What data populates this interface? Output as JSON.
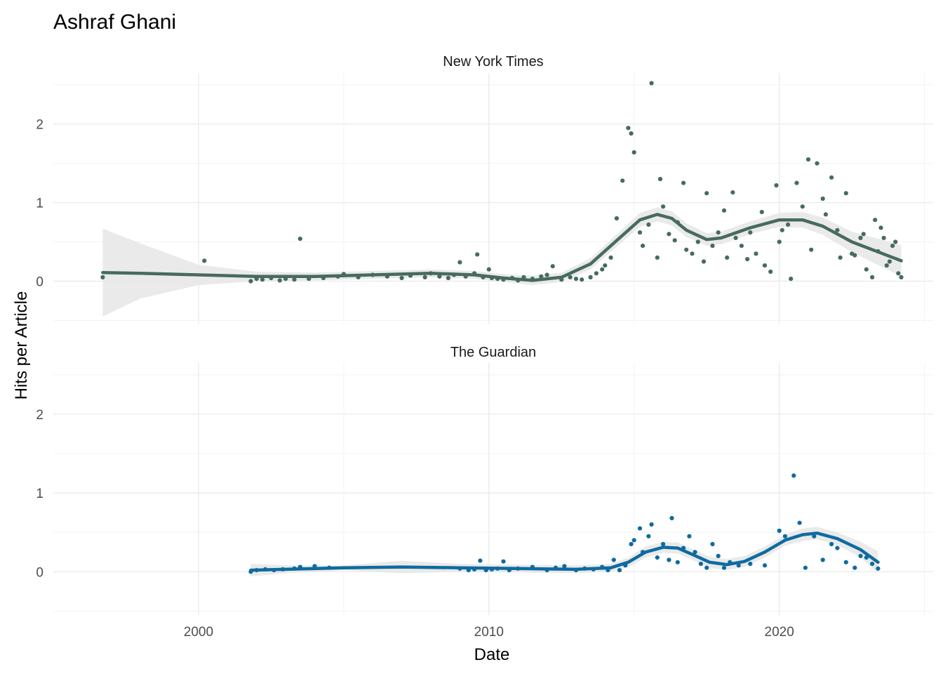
{
  "chart_data": {
    "type": "scatter",
    "title": "Ashraf Ghani",
    "xlabel": "Date",
    "ylabel": "Hits per Article",
    "xlim": [
      1995.0,
      2025.3
    ],
    "ylim": [
      -0.55,
      2.65
    ],
    "x_ticks": [
      2000,
      2010,
      2020
    ],
    "x_tick_labels": [
      "2000",
      "2010",
      "2020"
    ],
    "y_ticks": [
      0,
      1,
      2
    ],
    "y_tick_labels": [
      "0",
      "1",
      "2"
    ],
    "grid": true,
    "panels": [
      {
        "name": "New York Times",
        "color": "#476b5e",
        "points": [
          [
            1996.7,
            0.05
          ],
          [
            2000.2,
            0.26
          ],
          [
            2001.8,
            0.0
          ],
          [
            2002.0,
            0.03
          ],
          [
            2002.2,
            0.02
          ],
          [
            2002.5,
            0.04
          ],
          [
            2002.8,
            0.01
          ],
          [
            2003.0,
            0.03
          ],
          [
            2003.3,
            0.02
          ],
          [
            2003.5,
            0.54
          ],
          [
            2003.8,
            0.03
          ],
          [
            2004.3,
            0.04
          ],
          [
            2004.8,
            0.06
          ],
          [
            2005.0,
            0.09
          ],
          [
            2005.5,
            0.05
          ],
          [
            2006.0,
            0.08
          ],
          [
            2006.5,
            0.06
          ],
          [
            2007.0,
            0.04
          ],
          [
            2007.3,
            0.07
          ],
          [
            2007.8,
            0.05
          ],
          [
            2008.0,
            0.1
          ],
          [
            2008.3,
            0.06
          ],
          [
            2008.6,
            0.04
          ],
          [
            2008.8,
            0.08
          ],
          [
            2009.0,
            0.24
          ],
          [
            2009.2,
            0.06
          ],
          [
            2009.5,
            0.1
          ],
          [
            2009.6,
            0.34
          ],
          [
            2009.8,
            0.05
          ],
          [
            2010.0,
            0.15
          ],
          [
            2010.1,
            0.04
          ],
          [
            2010.3,
            0.03
          ],
          [
            2010.5,
            0.02
          ],
          [
            2010.8,
            0.04
          ],
          [
            2011.0,
            0.01
          ],
          [
            2011.2,
            0.05
          ],
          [
            2011.5,
            0.03
          ],
          [
            2011.8,
            0.06
          ],
          [
            2012.0,
            0.08
          ],
          [
            2012.2,
            0.19
          ],
          [
            2012.5,
            0.02
          ],
          [
            2012.8,
            0.05
          ],
          [
            2013.0,
            0.03
          ],
          [
            2013.2,
            0.02
          ],
          [
            2013.5,
            0.05
          ],
          [
            2013.7,
            0.1
          ],
          [
            2013.9,
            0.15
          ],
          [
            2014.0,
            0.2
          ],
          [
            2014.2,
            0.3
          ],
          [
            2014.4,
            0.8
          ],
          [
            2014.6,
            1.28
          ],
          [
            2014.8,
            1.95
          ],
          [
            2014.9,
            1.88
          ],
          [
            2015.0,
            1.64
          ],
          [
            2015.2,
            0.62
          ],
          [
            2015.3,
            0.45
          ],
          [
            2015.5,
            0.72
          ],
          [
            2015.6,
            2.52
          ],
          [
            2015.8,
            0.3
          ],
          [
            2015.9,
            1.3
          ],
          [
            2016.0,
            0.95
          ],
          [
            2016.2,
            0.6
          ],
          [
            2016.4,
            0.52
          ],
          [
            2016.5,
            0.75
          ],
          [
            2016.7,
            1.25
          ],
          [
            2016.8,
            0.4
          ],
          [
            2017.0,
            0.35
          ],
          [
            2017.2,
            0.5
          ],
          [
            2017.4,
            0.25
          ],
          [
            2017.5,
            1.12
          ],
          [
            2017.7,
            0.45
          ],
          [
            2017.9,
            0.62
          ],
          [
            2018.1,
            0.9
          ],
          [
            2018.2,
            0.3
          ],
          [
            2018.4,
            1.13
          ],
          [
            2018.5,
            0.55
          ],
          [
            2018.7,
            0.45
          ],
          [
            2018.9,
            0.28
          ],
          [
            2019.0,
            0.62
          ],
          [
            2019.2,
            0.35
          ],
          [
            2019.4,
            0.88
          ],
          [
            2019.5,
            0.2
          ],
          [
            2019.7,
            0.12
          ],
          [
            2019.9,
            1.22
          ],
          [
            2020.0,
            0.5
          ],
          [
            2020.1,
            0.65
          ],
          [
            2020.3,
            0.72
          ],
          [
            2020.4,
            0.03
          ],
          [
            2020.6,
            1.25
          ],
          [
            2020.8,
            0.95
          ],
          [
            2021.0,
            1.55
          ],
          [
            2021.1,
            0.4
          ],
          [
            2021.3,
            1.5
          ],
          [
            2021.5,
            1.05
          ],
          [
            2021.6,
            0.85
          ],
          [
            2021.8,
            1.32
          ],
          [
            2022.0,
            0.65
          ],
          [
            2022.1,
            0.3
          ],
          [
            2022.3,
            1.12
          ],
          [
            2022.5,
            0.35
          ],
          [
            2022.6,
            0.33
          ],
          [
            2022.8,
            0.55
          ],
          [
            2022.9,
            0.6
          ],
          [
            2023.0,
            0.15
          ],
          [
            2023.2,
            0.05
          ],
          [
            2023.3,
            0.78
          ],
          [
            2023.4,
            0.38
          ],
          [
            2023.5,
            0.68
          ],
          [
            2023.6,
            0.55
          ],
          [
            2023.7,
            0.2
          ],
          [
            2023.8,
            0.25
          ],
          [
            2023.9,
            0.45
          ],
          [
            2024.0,
            0.5
          ],
          [
            2024.1,
            0.1
          ],
          [
            2024.2,
            0.05
          ]
        ],
        "smooth": [
          [
            1996.7,
            0.11
          ],
          [
            1998.0,
            0.1
          ],
          [
            2000.0,
            0.08
          ],
          [
            2002.0,
            0.06
          ],
          [
            2004.0,
            0.06
          ],
          [
            2006.0,
            0.08
          ],
          [
            2008.0,
            0.1
          ],
          [
            2009.5,
            0.08
          ],
          [
            2010.5,
            0.04
          ],
          [
            2011.5,
            0.01
          ],
          [
            2012.5,
            0.05
          ],
          [
            2013.5,
            0.22
          ],
          [
            2014.5,
            0.55
          ],
          [
            2015.2,
            0.78
          ],
          [
            2015.8,
            0.85
          ],
          [
            2016.3,
            0.8
          ],
          [
            2016.8,
            0.65
          ],
          [
            2017.5,
            0.53
          ],
          [
            2018.0,
            0.55
          ],
          [
            2019.0,
            0.68
          ],
          [
            2020.0,
            0.78
          ],
          [
            2020.8,
            0.78
          ],
          [
            2021.5,
            0.7
          ],
          [
            2022.5,
            0.5
          ],
          [
            2024.2,
            0.26
          ]
        ],
        "band": [
          [
            1996.7,
            -0.45,
            0.67
          ],
          [
            1998.0,
            -0.22,
            0.48
          ],
          [
            2000.0,
            -0.05,
            0.21
          ],
          [
            2002.0,
            0.0,
            0.12
          ],
          [
            2004.0,
            0.01,
            0.11
          ],
          [
            2006.0,
            0.03,
            0.13
          ],
          [
            2008.0,
            0.05,
            0.15
          ],
          [
            2009.5,
            0.03,
            0.13
          ],
          [
            2010.5,
            -0.01,
            0.09
          ],
          [
            2011.5,
            -0.05,
            0.07
          ],
          [
            2012.5,
            -0.01,
            0.11
          ],
          [
            2013.5,
            0.15,
            0.29
          ],
          [
            2014.5,
            0.47,
            0.63
          ],
          [
            2015.2,
            0.69,
            0.87
          ],
          [
            2015.8,
            0.76,
            0.94
          ],
          [
            2016.3,
            0.71,
            0.89
          ],
          [
            2016.8,
            0.56,
            0.74
          ],
          [
            2017.5,
            0.45,
            0.61
          ],
          [
            2018.0,
            0.47,
            0.63
          ],
          [
            2019.0,
            0.6,
            0.76
          ],
          [
            2020.0,
            0.69,
            0.87
          ],
          [
            2020.8,
            0.68,
            0.88
          ],
          [
            2021.5,
            0.59,
            0.81
          ],
          [
            2022.5,
            0.37,
            0.63
          ],
          [
            2024.2,
            0.06,
            0.46
          ]
        ]
      },
      {
        "name": "The Guardian",
        "color": "#0e6ba0",
        "points": [
          [
            2001.8,
            0.0
          ],
          [
            2002.0,
            0.02
          ],
          [
            2002.3,
            0.03
          ],
          [
            2002.6,
            0.02
          ],
          [
            2002.9,
            0.03
          ],
          [
            2003.3,
            0.04
          ],
          [
            2003.5,
            0.06
          ],
          [
            2004.0,
            0.07
          ],
          [
            2004.5,
            0.05
          ],
          [
            2009.0,
            0.04
          ],
          [
            2009.3,
            0.02
          ],
          [
            2009.5,
            0.03
          ],
          [
            2009.7,
            0.14
          ],
          [
            2009.9,
            0.02
          ],
          [
            2010.1,
            0.03
          ],
          [
            2010.3,
            0.04
          ],
          [
            2010.5,
            0.13
          ],
          [
            2010.7,
            0.02
          ],
          [
            2011.0,
            0.04
          ],
          [
            2011.5,
            0.06
          ],
          [
            2012.0,
            0.02
          ],
          [
            2012.3,
            0.05
          ],
          [
            2012.6,
            0.07
          ],
          [
            2013.0,
            0.02
          ],
          [
            2013.3,
            0.04
          ],
          [
            2013.6,
            0.03
          ],
          [
            2013.9,
            0.06
          ],
          [
            2014.1,
            0.02
          ],
          [
            2014.3,
            0.15
          ],
          [
            2014.5,
            0.02
          ],
          [
            2014.7,
            0.08
          ],
          [
            2014.9,
            0.35
          ],
          [
            2015.0,
            0.4
          ],
          [
            2015.2,
            0.55
          ],
          [
            2015.3,
            0.25
          ],
          [
            2015.5,
            0.45
          ],
          [
            2015.6,
            0.6
          ],
          [
            2015.8,
            0.18
          ],
          [
            2016.0,
            0.35
          ],
          [
            2016.2,
            0.15
          ],
          [
            2016.3,
            0.68
          ],
          [
            2016.5,
            0.12
          ],
          [
            2016.7,
            0.3
          ],
          [
            2016.9,
            0.45
          ],
          [
            2017.1,
            0.25
          ],
          [
            2017.3,
            0.1
          ],
          [
            2017.5,
            0.05
          ],
          [
            2017.7,
            0.35
          ],
          [
            2017.9,
            0.2
          ],
          [
            2018.1,
            0.05
          ],
          [
            2018.3,
            0.12
          ],
          [
            2018.6,
            0.08
          ],
          [
            2019.0,
            0.1
          ],
          [
            2019.5,
            0.08
          ],
          [
            2020.0,
            0.52
          ],
          [
            2020.2,
            0.45
          ],
          [
            2020.5,
            1.22
          ],
          [
            2020.7,
            0.62
          ],
          [
            2020.9,
            0.05
          ],
          [
            2021.2,
            0.45
          ],
          [
            2021.5,
            0.15
          ],
          [
            2021.8,
            0.35
          ],
          [
            2022.0,
            0.3
          ],
          [
            2022.3,
            0.12
          ],
          [
            2022.6,
            0.05
          ],
          [
            2022.8,
            0.2
          ],
          [
            2023.0,
            0.18
          ],
          [
            2023.2,
            0.1
          ],
          [
            2023.4,
            0.04
          ]
        ],
        "smooth": [
          [
            2001.8,
            0.02
          ],
          [
            2003.0,
            0.03
          ],
          [
            2005.0,
            0.05
          ],
          [
            2007.0,
            0.06
          ],
          [
            2009.0,
            0.05
          ],
          [
            2011.0,
            0.04
          ],
          [
            2013.0,
            0.03
          ],
          [
            2014.2,
            0.05
          ],
          [
            2014.8,
            0.12
          ],
          [
            2015.4,
            0.25
          ],
          [
            2016.0,
            0.31
          ],
          [
            2016.5,
            0.3
          ],
          [
            2017.0,
            0.22
          ],
          [
            2017.6,
            0.12
          ],
          [
            2018.2,
            0.09
          ],
          [
            2018.8,
            0.13
          ],
          [
            2019.5,
            0.25
          ],
          [
            2020.2,
            0.4
          ],
          [
            2020.8,
            0.47
          ],
          [
            2021.3,
            0.49
          ],
          [
            2022.0,
            0.42
          ],
          [
            2022.8,
            0.28
          ],
          [
            2023.4,
            0.12
          ]
        ],
        "band": [
          [
            2001.8,
            -0.06,
            0.1
          ],
          [
            2003.0,
            -0.02,
            0.08
          ],
          [
            2005.0,
            0.02,
            0.08
          ],
          [
            2007.0,
            -0.02,
            0.14
          ],
          [
            2009.0,
            0.0,
            0.1
          ],
          [
            2011.0,
            -0.01,
            0.09
          ],
          [
            2013.0,
            -0.02,
            0.08
          ],
          [
            2014.2,
            0.0,
            0.1
          ],
          [
            2014.8,
            0.06,
            0.18
          ],
          [
            2015.4,
            0.18,
            0.32
          ],
          [
            2016.0,
            0.24,
            0.38
          ],
          [
            2016.5,
            0.23,
            0.37
          ],
          [
            2017.0,
            0.15,
            0.29
          ],
          [
            2017.6,
            0.05,
            0.19
          ],
          [
            2018.2,
            0.02,
            0.16
          ],
          [
            2018.8,
            0.06,
            0.2
          ],
          [
            2019.5,
            0.18,
            0.32
          ],
          [
            2020.2,
            0.33,
            0.47
          ],
          [
            2020.8,
            0.39,
            0.55
          ],
          [
            2021.3,
            0.41,
            0.57
          ],
          [
            2022.0,
            0.34,
            0.5
          ],
          [
            2022.8,
            0.18,
            0.38
          ],
          [
            2023.4,
            -0.02,
            0.26
          ]
        ]
      }
    ]
  }
}
